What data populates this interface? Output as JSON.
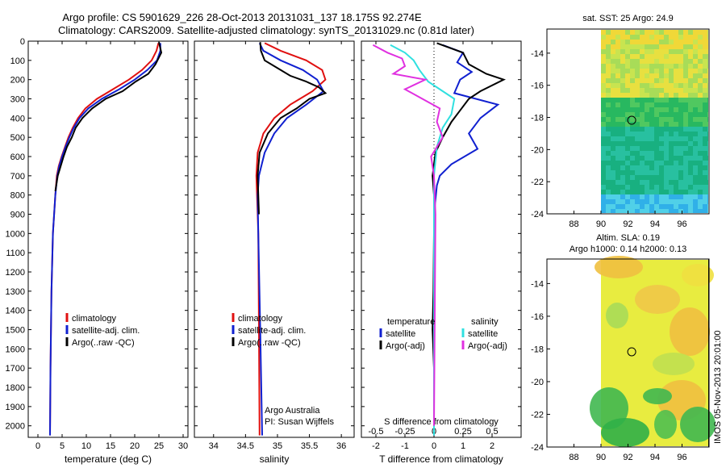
{
  "header": {
    "line1": "Argo profile: CS 5901629_226 28-Oct-2013 20131031_137 18.175S 92.274E",
    "line2": "Climatology: CARS2009. Satellite-adjusted climatology: synTS_20131029.nc (0.81d later)"
  },
  "depth_axis": {
    "ticks": [
      0,
      100,
      200,
      300,
      400,
      500,
      600,
      700,
      800,
      900,
      1000,
      1100,
      1200,
      1300,
      1400,
      1500,
      1600,
      1700,
      1800,
      1900,
      2000
    ],
    "ylim": [
      0,
      2060
    ]
  },
  "colors": {
    "climatology": "#e01010",
    "satellite": "#1020d0",
    "argo": "#000000",
    "sal_satellite": "#30e0e0",
    "sal_argo": "#e030e0"
  },
  "chart_data": [
    {
      "type": "line",
      "xlabel": "temperature (deg C)",
      "xlim": [
        -2,
        31
      ],
      "xticks": [
        0,
        5,
        10,
        15,
        20,
        25,
        30
      ],
      "legend": [
        "climatology",
        "satellite-adj. clim.",
        "Argo(..raw -QC)"
      ],
      "legend_position": "lower-center",
      "series": [
        {
          "name": "climatology",
          "x": [
            24.9,
            24.5,
            23.5,
            21.5,
            18.8,
            15.5,
            12.2,
            9.8,
            8.3,
            7.2,
            6.3,
            5.6,
            4.9,
            4.3,
            3.9,
            3.6,
            3.1,
            2.8,
            2.6,
            2.5
          ],
          "y": [
            10,
            50,
            100,
            150,
            200,
            250,
            300,
            350,
            400,
            450,
            500,
            550,
            600,
            650,
            700,
            800,
            1000,
            1300,
            1700,
            2050
          ]
        },
        {
          "name": "satellite-adj. clim.",
          "x": [
            25.3,
            25.3,
            24.6,
            22.6,
            20.0,
            16.8,
            13.2,
            10.4,
            8.6,
            7.4,
            6.5,
            5.7,
            5.0,
            4.4,
            4.0,
            3.6,
            3.1,
            2.8,
            2.6,
            2.5
          ],
          "y": [
            10,
            50,
            100,
            150,
            200,
            250,
            300,
            350,
            400,
            450,
            500,
            550,
            600,
            650,
            700,
            800,
            1000,
            1300,
            1700,
            2050
          ]
        },
        {
          "name": "Argo(..raw -QC)",
          "x": [
            25.0,
            25.5,
            24.3,
            22.8,
            20.2,
            17.5,
            14.0,
            11.2,
            9.2,
            7.8,
            7.0,
            6.0,
            5.3,
            4.7,
            4.1,
            3.6
          ],
          "y": [
            5,
            60,
            120,
            170,
            210,
            260,
            300,
            350,
            400,
            450,
            500,
            550,
            600,
            650,
            700,
            780
          ]
        }
      ]
    },
    {
      "type": "line",
      "xlabel": "salinity",
      "xlim": [
        33.7,
        36.2
      ],
      "xticks": [
        34,
        34.5,
        35,
        35.5,
        36
      ],
      "legend": [
        "climatology",
        "satellite-adj. clim.",
        "Argo(..raw -QC)"
      ],
      "legend_position": "lower-center",
      "annotations": [
        "Argo Australia",
        "PI: Susan Wijffels"
      ],
      "series": [
        {
          "name": "climatology",
          "x": [
            34.8,
            35.05,
            35.45,
            35.7,
            35.75,
            35.55,
            35.2,
            34.95,
            34.78,
            34.69,
            34.67,
            34.68,
            34.7,
            34.71,
            34.72
          ],
          "y": [
            10,
            50,
            100,
            150,
            200,
            260,
            330,
            400,
            480,
            580,
            700,
            800,
            1000,
            1500,
            2050
          ]
        },
        {
          "name": "satellite-adj. clim.",
          "x": [
            34.72,
            34.78,
            35.05,
            35.4,
            35.62,
            35.72,
            35.45,
            35.15,
            34.95,
            34.8,
            34.71,
            34.69,
            34.7,
            34.73,
            34.76
          ],
          "y": [
            10,
            50,
            100,
            150,
            200,
            260,
            330,
            400,
            480,
            580,
            700,
            800,
            1000,
            1500,
            2050
          ]
        },
        {
          "name": "Argo(..raw -QC)",
          "x": [
            34.73,
            34.74,
            34.8,
            35.0,
            35.2,
            35.45,
            35.65,
            35.75,
            35.5,
            35.3,
            35.05,
            34.85,
            34.72,
            34.69,
            34.7,
            34.71
          ],
          "y": [
            5,
            50,
            100,
            140,
            180,
            210,
            240,
            270,
            300,
            350,
            400,
            480,
            580,
            700,
            800,
            900
          ]
        }
      ]
    },
    {
      "type": "line",
      "xlabel": "T difference from climatology",
      "xlabel_top": "S difference from climatology",
      "xlim": [
        -2.5,
        3
      ],
      "xticks": [
        -2,
        -1,
        0,
        1,
        2
      ],
      "xticks_top": [
        "-0.5",
        "-0.25",
        "0",
        "0.25",
        "0.5"
      ],
      "legend_groups": [
        {
          "title": "temperature",
          "items": [
            "satellite",
            "Argo(-adj)"
          ]
        },
        {
          "title": "salinity",
          "items": [
            "satellite",
            "Argo(-adj)"
          ]
        }
      ],
      "series": [
        {
          "name": "satellite",
          "group": "temperature",
          "x": [
            0.3,
            1.0,
            0.8,
            1.3,
            0.9,
            0.7,
            2.2,
            1.6,
            1.2,
            1.5,
            0.6,
            0.2,
            0.1,
            0.0,
            0.0
          ],
          "y": [
            20,
            60,
            110,
            160,
            200,
            270,
            330,
            400,
            480,
            560,
            640,
            700,
            750,
            900,
            2050
          ]
        },
        {
          "name": "Argo(-adj)",
          "group": "temperature",
          "x": [
            0.1,
            1.0,
            1.2,
            1.8,
            2.4,
            1.6,
            1.2,
            0.9,
            0.6,
            0.3,
            0.05,
            -0.05,
            0.0,
            0.0,
            -0.02,
            -0.05,
            0.0,
            0.0
          ],
          "y": [
            10,
            60,
            120,
            170,
            200,
            260,
            300,
            360,
            420,
            500,
            580,
            700,
            800,
            1000,
            1300,
            1500,
            1700,
            2000
          ]
        },
        {
          "name": "satellite",
          "group": "salinity",
          "x": [
            -1.5,
            -1.0,
            -0.7,
            -0.5,
            -0.2,
            0.3,
            0.7,
            0.6,
            0.3,
            0.1,
            0.0,
            0.0,
            0.0
          ],
          "y": [
            20,
            60,
            100,
            150,
            210,
            260,
            300,
            380,
            450,
            550,
            700,
            900,
            2050
          ]
        },
        {
          "name": "Argo(-adj)",
          "group": "salinity",
          "x": [
            -2.1,
            -1.6,
            -1.1,
            -1.0,
            -1.4,
            -0.3,
            -1.0,
            -0.4,
            0.2,
            0.1,
            0.3,
            -0.1,
            0.0,
            0.05,
            0.0
          ],
          "y": [
            20,
            60,
            90,
            130,
            170,
            200,
            250,
            300,
            350,
            420,
            500,
            600,
            700,
            900,
            2000
          ]
        }
      ]
    },
    {
      "type": "heatmap",
      "title": "sat. SST: 25 Argo: 24.9",
      "xlim": [
        86,
        98
      ],
      "ylim": [
        -24,
        -12.5
      ],
      "xticks": [
        88,
        90,
        92,
        94,
        96
      ],
      "yticks": [
        -14,
        -16,
        -18,
        -20,
        -22,
        -24
      ],
      "marker": {
        "lon": 92.274,
        "lat": -18.175
      },
      "bands": [
        {
          "lat_from": -12.5,
          "lat_to": -16.5,
          "color": "yellow-green"
        },
        {
          "lat_from": -16.5,
          "lat_to": -18.5,
          "color": "green"
        },
        {
          "lat_from": -18.5,
          "lat_to": -22.5,
          "color": "teal"
        },
        {
          "lat_from": -22.5,
          "lat_to": -24,
          "color": "light blue"
        }
      ]
    },
    {
      "type": "heatmap",
      "title": "Altim. SLA: 0.19",
      "subtitle": "Argo h1000: 0.14 h2000: 0.13",
      "xlim": [
        86,
        98
      ],
      "ylim": [
        -24,
        -12.5
      ],
      "xticks": [
        88,
        90,
        92,
        94,
        96
      ],
      "yticks": [
        -14,
        -16,
        -18,
        -20,
        -22,
        -24
      ],
      "marker": {
        "lon": 92.274,
        "lat": -18.175
      }
    }
  ],
  "side_label": "IMOS 05-Nov-2013 20:01:00"
}
